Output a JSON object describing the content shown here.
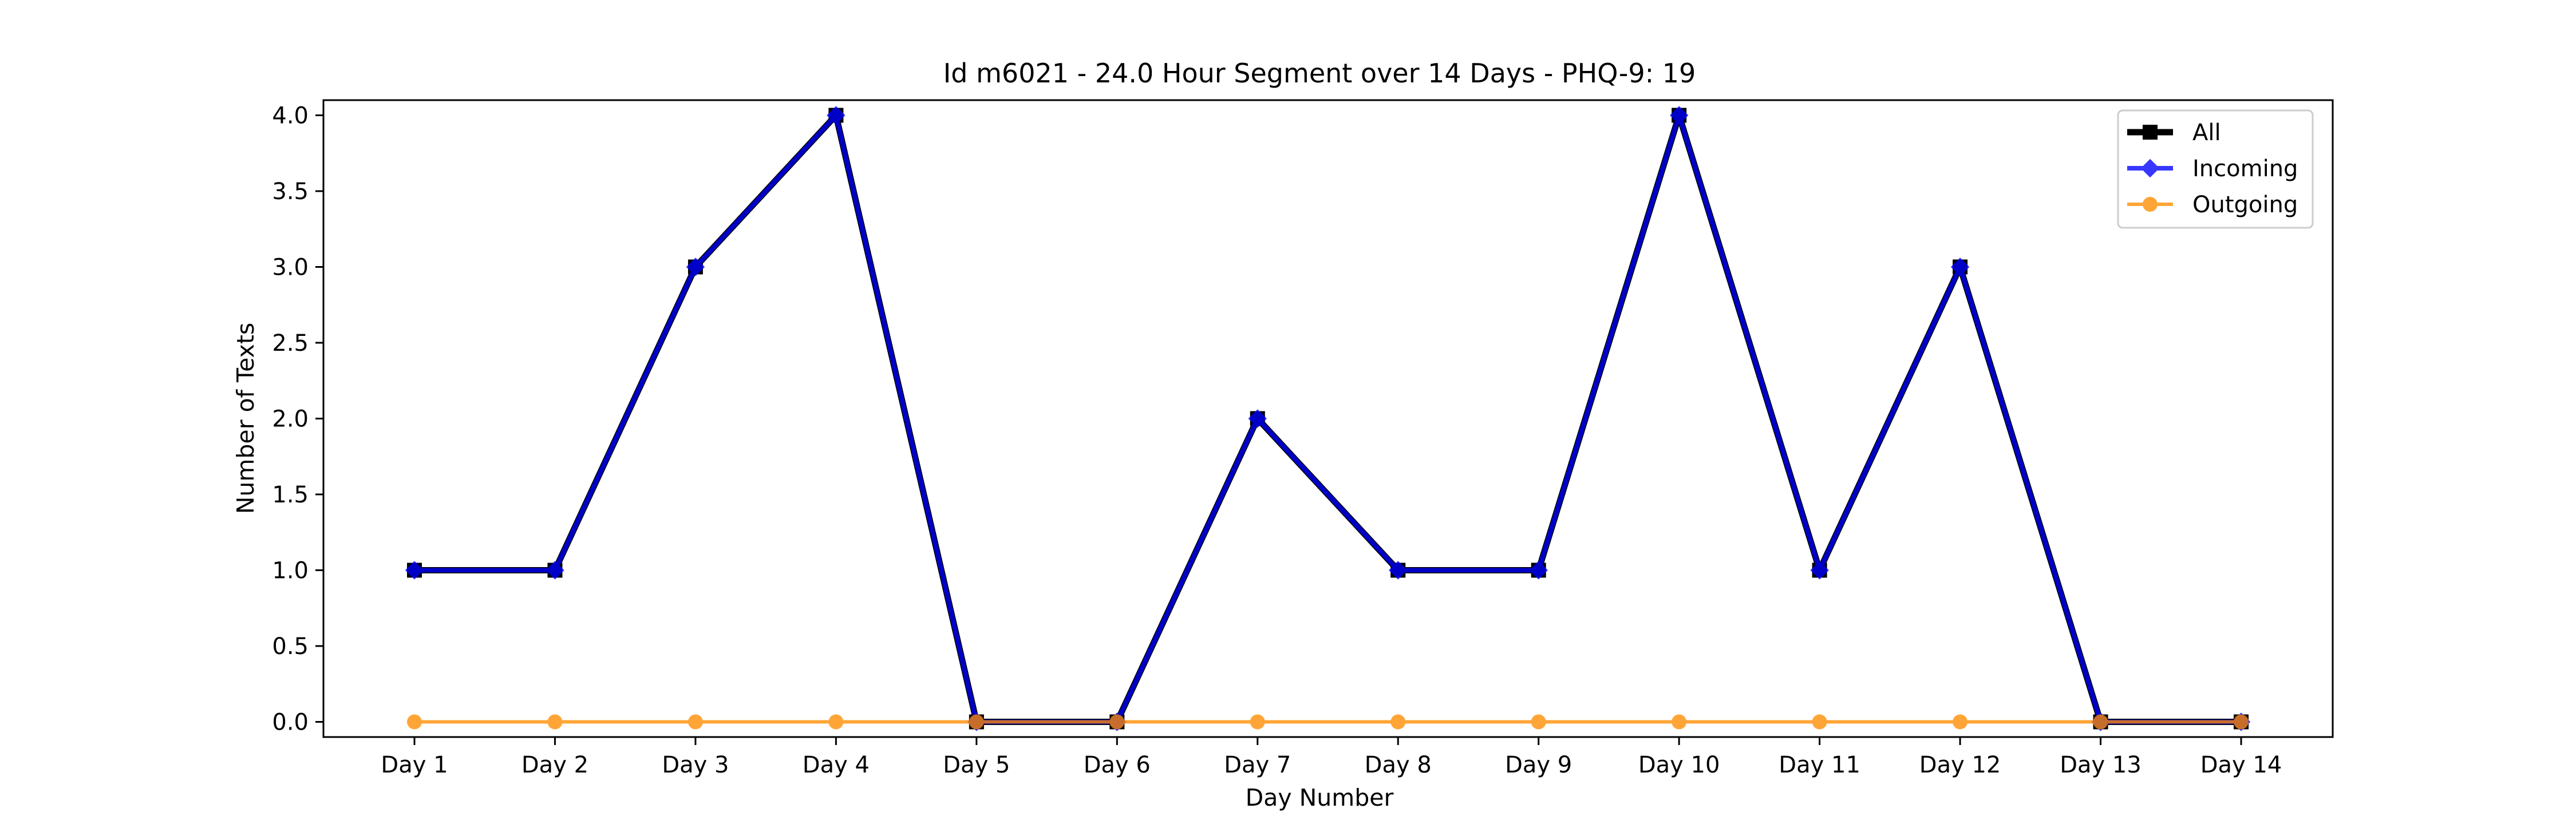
{
  "chart_data": {
    "type": "line",
    "title": "Id m6021 - 24.0 Hour Segment over 14 Days - PHQ-9: 19",
    "xlabel": "Day Number",
    "ylabel": "Number of Texts",
    "categories": [
      "Day 1",
      "Day 2",
      "Day 3",
      "Day 4",
      "Day 5",
      "Day 6",
      "Day 7",
      "Day 8",
      "Day 9",
      "Day 10",
      "Day 11",
      "Day 12",
      "Day 13",
      "Day 14"
    ],
    "ylim": [
      -0.1,
      4.1
    ],
    "yticks": [
      "0.0",
      "0.5",
      "1.0",
      "1.5",
      "2.0",
      "2.5",
      "3.0",
      "3.5",
      "4.0"
    ],
    "grid": false,
    "legend_position": "top-right",
    "series": [
      {
        "name": "All",
        "color": "#000000",
        "marker": "square",
        "values": [
          1,
          1,
          3,
          4,
          0,
          0,
          2,
          1,
          1,
          4,
          1,
          3,
          0,
          0
        ]
      },
      {
        "name": "Incoming",
        "color": "#0000ff",
        "marker": "diamond",
        "values": [
          1,
          1,
          3,
          4,
          0,
          0,
          2,
          1,
          1,
          4,
          1,
          3,
          0,
          0
        ]
      },
      {
        "name": "Outgoing",
        "color": "#ff8c00",
        "marker": "circle",
        "values": [
          0,
          0,
          0,
          0,
          0,
          0,
          0,
          0,
          0,
          0,
          0,
          0,
          0,
          0
        ]
      }
    ]
  }
}
